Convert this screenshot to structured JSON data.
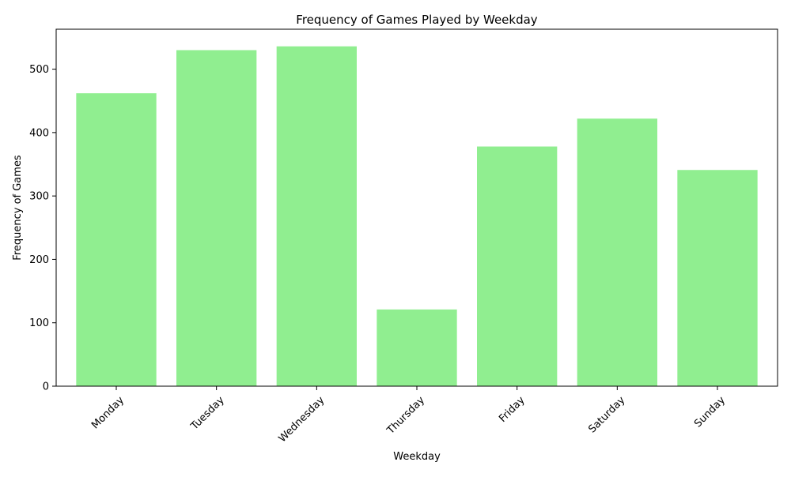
{
  "chart_data": {
    "type": "bar",
    "title": "Frequency of Games Played by Weekday",
    "xlabel": "Weekday",
    "ylabel": "Frequency of Games",
    "categories": [
      "Monday",
      "Tuesday",
      "Wednesday",
      "Thursday",
      "Friday",
      "Saturday",
      "Sunday"
    ],
    "values": [
      462,
      530,
      536,
      121,
      378,
      422,
      341
    ],
    "ylim": [
      0,
      563
    ],
    "yticks": [
      0,
      100,
      200,
      300,
      400,
      500
    ],
    "bar_color": "#90ee90",
    "grid": false,
    "legend": "none"
  }
}
